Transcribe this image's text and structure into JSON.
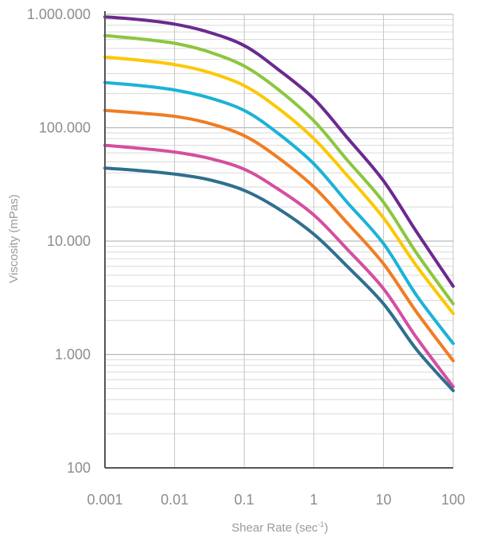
{
  "chart_data": {
    "type": "line",
    "x_scale": "log",
    "y_scale": "log",
    "xlim": [
      0.001,
      100
    ],
    "ylim": [
      100,
      1000000
    ],
    "grid": true,
    "x_ticks": [
      {
        "value": 0.001,
        "label": "0.001"
      },
      {
        "value": 0.01,
        "label": "0.01"
      },
      {
        "value": 0.1,
        "label": "0.1"
      },
      {
        "value": 1,
        "label": "1"
      },
      {
        "value": 10,
        "label": "10"
      },
      {
        "value": 100,
        "label": "100"
      }
    ],
    "y_ticks": [
      {
        "value": 100,
        "label": "100"
      },
      {
        "value": 1000,
        "label": "1.000"
      },
      {
        "value": 10000,
        "label": "10.000"
      },
      {
        "value": 100000,
        "label": "100.000"
      },
      {
        "value": 1000000,
        "label": "1.000.000"
      }
    ],
    "xlabel_main": "Shear Rate (sec",
    "xlabel_sup": "-1",
    "xlabel_end": ")",
    "ylabel": "Viscosity (mPas)",
    "x": [
      0.001,
      0.003,
      0.01,
      0.03,
      0.1,
      0.3,
      1,
      3,
      10,
      30,
      100
    ],
    "series": [
      {
        "color": "#6b2a8f",
        "values": [
          950000,
          900000,
          820000,
          700000,
          530000,
          330000,
          180000,
          82000,
          34000,
          12000,
          4000
        ]
      },
      {
        "color": "#8cc63f",
        "values": [
          650000,
          610000,
          555000,
          470000,
          350000,
          220000,
          115000,
          52000,
          22000,
          7800,
          2800
        ]
      },
      {
        "color": "#fcc800",
        "values": [
          420000,
          395000,
          360000,
          310000,
          235000,
          150000,
          80000,
          38000,
          16000,
          6000,
          2300
        ]
      },
      {
        "color": "#1bb3d6",
        "values": [
          250000,
          236000,
          215000,
          185000,
          142000,
          90000,
          48000,
          22000,
          9500,
          3300,
          1250
        ]
      },
      {
        "color": "#f07d23",
        "values": [
          142000,
          135000,
          126000,
          110000,
          85000,
          55000,
          30000,
          14500,
          6300,
          2350,
          880
        ]
      },
      {
        "color": "#d44fa0",
        "values": [
          70000,
          66000,
          61000,
          54000,
          43000,
          29000,
          17000,
          8500,
          3800,
          1400,
          520
        ]
      },
      {
        "color": "#2f6f8f",
        "values": [
          44000,
          42000,
          39000,
          35000,
          28000,
          19500,
          11500,
          6000,
          2800,
          1100,
          480
        ]
      }
    ]
  }
}
